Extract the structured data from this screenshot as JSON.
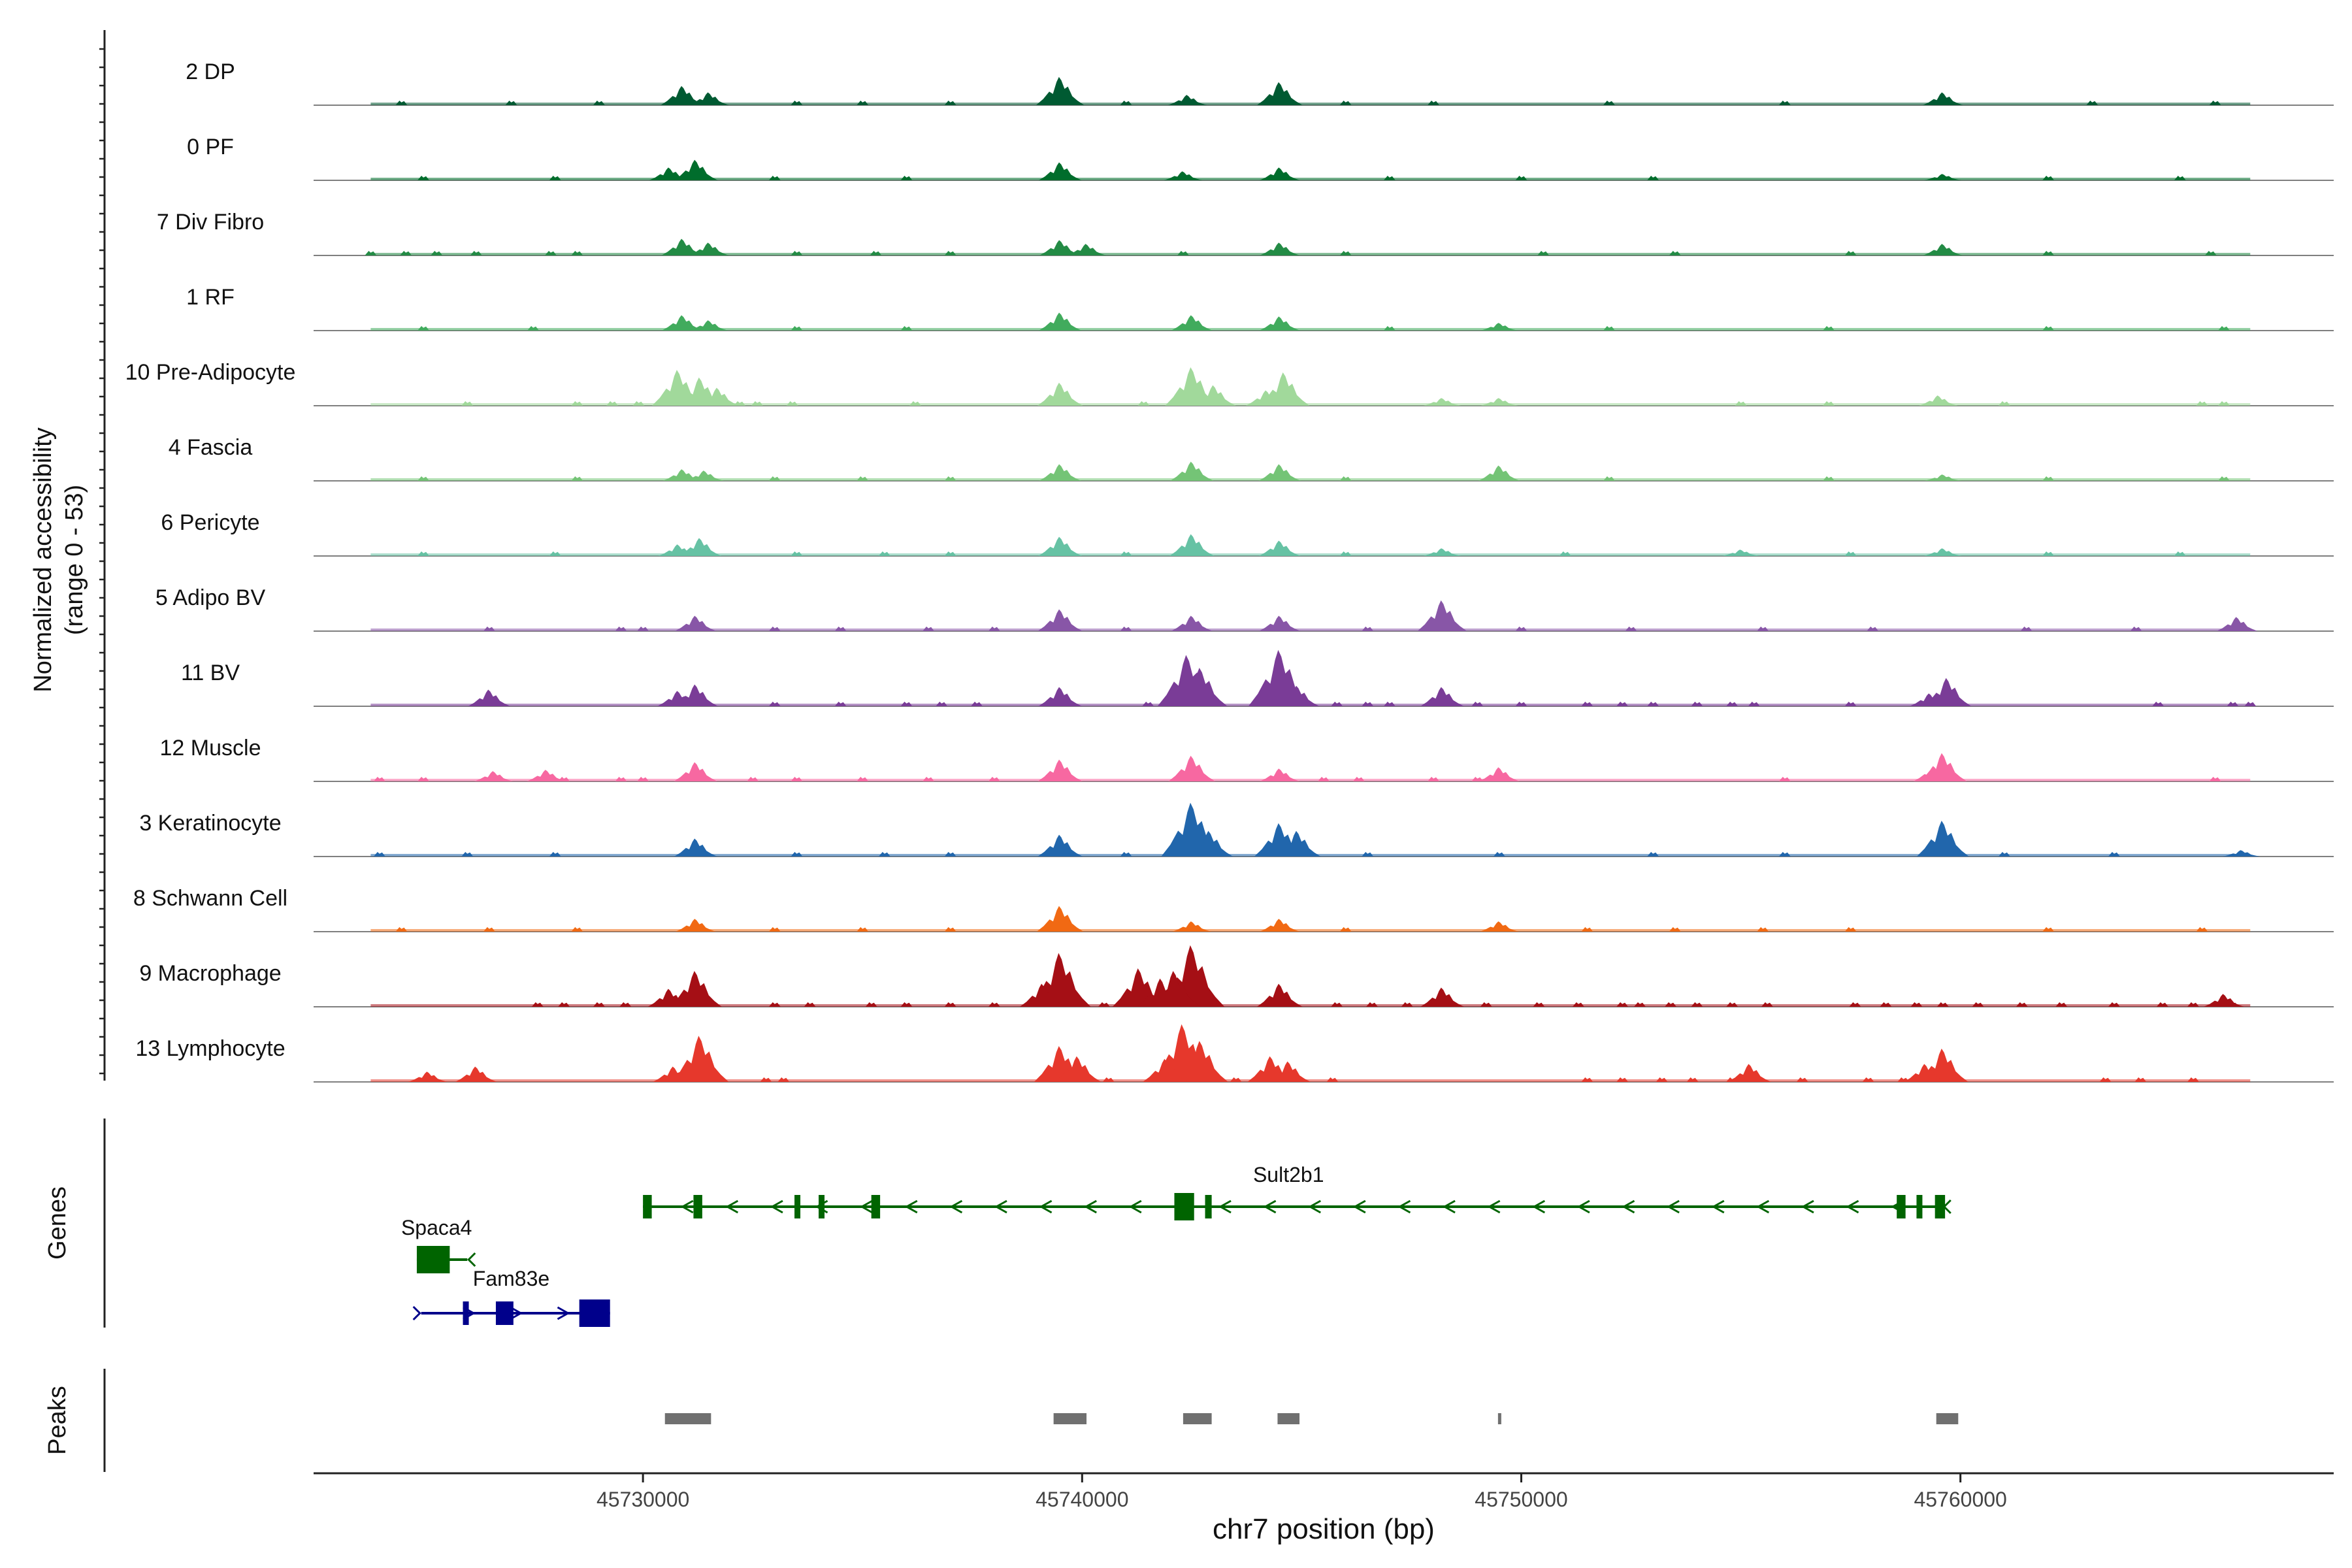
{
  "chart_data": {
    "type": "area",
    "title": "",
    "ylabel_lines": [
      "Normalized accessibility",
      "(range 0 - 53)"
    ],
    "xlabel": "chr7 position (bp)",
    "xlim": [
      45722500,
      45768500
    ],
    "x_ticks": [
      45730000,
      45740000,
      45750000,
      45760000
    ],
    "x_tick_labels": [
      "45730000",
      "45740000",
      "45750000",
      "45760000"
    ],
    "ylim": [
      0,
      53
    ],
    "panels": {
      "coverage": "",
      "genes": "Genes",
      "peaks": "Peaks"
    },
    "series": [
      {
        "name": "2 DP",
        "color": "#005a32",
        "peaks": [
          [
            45730900,
            15
          ],
          [
            45731500,
            10
          ],
          [
            45739500,
            22
          ],
          [
            45742400,
            8
          ],
          [
            45744500,
            18
          ],
          [
            45759600,
            10
          ]
        ],
        "scatter": [
          45724500,
          45727000,
          45729000,
          45733500,
          45735000,
          45737000,
          45741000,
          45746000,
          45748000,
          45752000,
          45756000,
          45763000,
          45765800
        ]
      },
      {
        "name": "0 PF",
        "color": "#006d2c",
        "peaks": [
          [
            45730600,
            10
          ],
          [
            45731200,
            16
          ],
          [
            45739500,
            14
          ],
          [
            45742300,
            7
          ],
          [
            45744500,
            10
          ],
          [
            45759600,
            5
          ]
        ],
        "scatter": [
          45725000,
          45728000,
          45733000,
          45736000,
          45747000,
          45750000,
          45753000,
          45762000,
          45765000
        ]
      },
      {
        "name": "7 Div Fibro",
        "color": "#238b45",
        "peaks": [
          [
            45730900,
            13
          ],
          [
            45731500,
            10
          ],
          [
            45739500,
            12
          ],
          [
            45740100,
            9
          ],
          [
            45744500,
            10
          ],
          [
            45759600,
            9
          ]
        ],
        "scatter": [
          45723800,
          45724600,
          45725300,
          45726200,
          45727900,
          45728500,
          45733500,
          45735300,
          45737000,
          45742300,
          45746000,
          45750500,
          45753500,
          45757500,
          45762000,
          45765700
        ]
      },
      {
        "name": "1 RF",
        "color": "#41ab5d",
        "peaks": [
          [
            45730900,
            12
          ],
          [
            45731500,
            8
          ],
          [
            45739500,
            14
          ],
          [
            45742500,
            12
          ],
          [
            45744500,
            11
          ],
          [
            45749500,
            6
          ]
        ],
        "scatter": [
          45725000,
          45727500,
          45733500,
          45736000,
          45747000,
          45752000,
          45757000,
          45762000,
          45766000
        ]
      },
      {
        "name": "10 Pre-Adipocyte",
        "color": "#a1d99b",
        "peaks": [
          [
            45730800,
            28
          ],
          [
            45731300,
            22
          ],
          [
            45731700,
            14
          ],
          [
            45739500,
            18
          ],
          [
            45742500,
            30
          ],
          [
            45743000,
            16
          ],
          [
            45744600,
            26
          ],
          [
            45744200,
            12
          ],
          [
            45748200,
            6
          ],
          [
            45749500,
            6
          ],
          [
            45759500,
            8
          ]
        ],
        "scatter": [
          45726000,
          45728500,
          45729300,
          45729900,
          45732200,
          45732600,
          45733400,
          45736200,
          45741400,
          45755000,
          45757000,
          45761000,
          45765500,
          45766000
        ]
      },
      {
        "name": "4 Fascia",
        "color": "#74c476",
        "peaks": [
          [
            45730900,
            9
          ],
          [
            45731400,
            8
          ],
          [
            45739500,
            13
          ],
          [
            45742500,
            15
          ],
          [
            45744500,
            13
          ],
          [
            45749500,
            12
          ],
          [
            45759600,
            5
          ]
        ],
        "scatter": [
          45725000,
          45728500,
          45733000,
          45735000,
          45737000,
          45746000,
          45752000,
          45757000,
          45762000,
          45766000
        ]
      },
      {
        "name": "6 Pericyte",
        "color": "#66c2a4",
        "peaks": [
          [
            45730800,
            9
          ],
          [
            45731300,
            14
          ],
          [
            45739500,
            15
          ],
          [
            45742500,
            17
          ],
          [
            45744500,
            12
          ],
          [
            45748200,
            6
          ],
          [
            45755000,
            5
          ],
          [
            45759600,
            6
          ]
        ],
        "scatter": [
          45725000,
          45728000,
          45733500,
          45735500,
          45737000,
          45741000,
          45746000,
          45751000,
          45757500,
          45762000,
          45765000
        ]
      },
      {
        "name": "5 Adipo BV",
        "color": "#8856a7",
        "peaks": [
          [
            45731200,
            12
          ],
          [
            45739500,
            17
          ],
          [
            45742500,
            12
          ],
          [
            45744500,
            12
          ],
          [
            45748200,
            24
          ],
          [
            45766300,
            11
          ]
        ],
        "scatter": [
          45726500,
          45729500,
          45730000,
          45733000,
          45734500,
          45736500,
          45738000,
          45741000,
          45746500,
          45750000,
          45752500,
          45755500,
          45758000,
          45761500,
          45764000
        ]
      },
      {
        "name": "11 BV",
        "color": "#7a3c97",
        "peaks": [
          [
            45726500,
            13
          ],
          [
            45730800,
            12
          ],
          [
            45731200,
            17
          ],
          [
            45739500,
            15
          ],
          [
            45742400,
            40
          ],
          [
            45742700,
            30
          ],
          [
            45744500,
            44
          ],
          [
            45744900,
            16
          ],
          [
            45748200,
            15
          ],
          [
            45759700,
            22
          ],
          [
            45759300,
            10
          ]
        ],
        "scatter": [
          45733000,
          45734500,
          45736000,
          45736800,
          45737600,
          45741500,
          45745800,
          45746500,
          45747000,
          45749000,
          45750000,
          45751500,
          45752300,
          45753000,
          45754000,
          45754800,
          45755300,
          45757500,
          45764500,
          45766200,
          45766600
        ]
      },
      {
        "name": "12 Muscle",
        "color": "#f768a1",
        "peaks": [
          [
            45726600,
            8
          ],
          [
            45727800,
            9
          ],
          [
            45731200,
            15
          ],
          [
            45739500,
            17
          ],
          [
            45742500,
            20
          ],
          [
            45744500,
            10
          ],
          [
            45749500,
            11
          ],
          [
            45759600,
            22
          ],
          [
            45759400,
            12
          ]
        ],
        "scatter": [
          45724000,
          45725000,
          45728200,
          45729500,
          45730000,
          45732500,
          45733500,
          45735000,
          45736500,
          45738000,
          45745500,
          45746300,
          45748000,
          45749000,
          45756000,
          45765800
        ]
      },
      {
        "name": "3 Keratinocyte",
        "color": "#2166ac",
        "peaks": [
          [
            45731200,
            14
          ],
          [
            45739500,
            17
          ],
          [
            45742500,
            42
          ],
          [
            45742900,
            20
          ],
          [
            45744500,
            26
          ],
          [
            45744900,
            20
          ],
          [
            45759600,
            28
          ],
          [
            45766400,
            5
          ]
        ],
        "scatter": [
          45724000,
          45726000,
          45728000,
          45733500,
          45735500,
          45737000,
          45741000,
          45746500,
          45749500,
          45753000,
          45756000,
          45761000,
          45763500
        ]
      },
      {
        "name": "8 Schwann Cell",
        "color": "#f16913",
        "peaks": [
          [
            45731200,
            10
          ],
          [
            45739500,
            20
          ],
          [
            45742500,
            8
          ],
          [
            45744500,
            10
          ],
          [
            45749500,
            8
          ]
        ],
        "scatter": [
          45724500,
          45726500,
          45728500,
          45733000,
          45735000,
          45737000,
          45746000,
          45751500,
          45753500,
          45755500,
          45757500,
          45762000,
          45765500
        ]
      },
      {
        "name": "9 Macrophage",
        "color": "#a50f15",
        "peaks": [
          [
            45731200,
            28
          ],
          [
            45730600,
            14
          ],
          [
            45739500,
            42
          ],
          [
            45739100,
            18
          ],
          [
            45741300,
            30
          ],
          [
            45741800,
            22
          ],
          [
            45742500,
            48
          ],
          [
            45742100,
            28
          ],
          [
            45744500,
            18
          ],
          [
            45748200,
            15
          ],
          [
            45766000,
            10
          ]
        ],
        "scatter": [
          45727600,
          45728200,
          45729000,
          45729600,
          45733000,
          45733800,
          45735200,
          45736000,
          45737000,
          45738000,
          45740500,
          45745800,
          45746600,
          45747400,
          45749200,
          45750400,
          45751300,
          45752300,
          45752700,
          45753400,
          45754000,
          45754800,
          45755600,
          45757600,
          45758300,
          45759000,
          45759600,
          45760400,
          45761400,
          45762300,
          45763500,
          45764600,
          45765300,
          45766200
        ]
      },
      {
        "name": "13 Lymphocyte",
        "color": "#e6382c",
        "peaks": [
          [
            45731300,
            36
          ],
          [
            45730700,
            12
          ],
          [
            45739500,
            28
          ],
          [
            45739900,
            20
          ],
          [
            45742300,
            45
          ],
          [
            45742700,
            32
          ],
          [
            45741900,
            18
          ],
          [
            45744300,
            20
          ],
          [
            45744700,
            16
          ],
          [
            45725100,
            8
          ],
          [
            45726200,
            12
          ],
          [
            45759600,
            26
          ],
          [
            45759200,
            14
          ],
          [
            45755200,
            14
          ]
        ],
        "scatter": [
          45732800,
          45733200,
          45740600,
          45743500,
          45745700,
          45751500,
          45752300,
          45753200,
          45753900,
          45754800,
          45756400,
          45757900,
          45758700,
          45763300,
          45764100,
          45765300
        ]
      }
    ],
    "genes": [
      {
        "name": "Sult2b1",
        "color": "#006400",
        "start": 45730000,
        "end": 45759600,
        "strand": "-",
        "row": 0,
        "exons": [
          [
            45730000,
            45730200
          ],
          [
            45731150,
            45731350
          ],
          [
            45733450,
            45733550
          ],
          [
            45734000,
            45734100
          ],
          [
            45735200,
            45735400
          ],
          [
            45742100,
            45742550
          ],
          [
            45742800,
            45742950
          ],
          [
            45758550,
            45758750
          ],
          [
            45759000,
            45759120
          ],
          [
            45759420,
            45759650
          ]
        ]
      },
      {
        "name": "Spaca4",
        "color": "#006400",
        "start": 45724850,
        "end": 45726000,
        "strand": "-",
        "row": 1,
        "exons": [
          [
            45724850,
            45725600
          ]
        ]
      },
      {
        "name": "Fam83e",
        "color": "#00008b",
        "start": 45724950,
        "end": 45729250,
        "strand": "+",
        "row": 2,
        "exons": [
          [
            45725900,
            45725960
          ],
          [
            45726650,
            45727050
          ],
          [
            45728550,
            45729250
          ]
        ]
      }
    ],
    "peaks_track": {
      "color": "#707070",
      "regions": [
        [
          45730500,
          45731550
        ],
        [
          45739350,
          45740100
        ],
        [
          45742300,
          45742950
        ],
        [
          45744450,
          45744950
        ],
        [
          45749470,
          45749530
        ],
        [
          45759450,
          45759950
        ]
      ]
    }
  }
}
